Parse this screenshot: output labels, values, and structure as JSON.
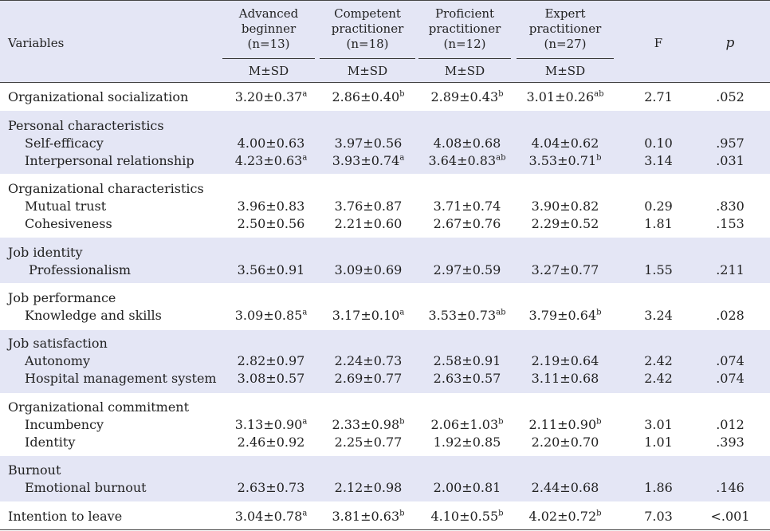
{
  "header": {
    "variables": "Variables",
    "groups": [
      "Advanced\nbeginner\n(n=13)",
      "Competent\npractitioner\n(n=18)",
      "Proficient\npractitioner\n(n=12)",
      "Expert\npractitioner\n(n=27)"
    ],
    "msd": "M±SD",
    "f": "F",
    "p": "p"
  },
  "rows": {
    "r0": {
      "label": "Organizational socialization",
      "v0": "3.20±0.37",
      "s0": "a",
      "v1": "2.86±0.40",
      "s1": "b",
      "v2": "2.89±0.43",
      "s2": "b",
      "v3": "3.01±0.26",
      "s3": "ab",
      "f": "2.71",
      "p": ".052"
    },
    "r1": {
      "label": "Personal characteristics"
    },
    "r2": {
      "label": "Self-efficacy",
      "v0": "4.00±0.63",
      "v1": "3.97±0.56",
      "v2": "4.08±0.68",
      "v3": "4.04±0.62",
      "f": "0.10",
      "p": ".957"
    },
    "r3": {
      "label": "Interpersonal relationship",
      "v0": "4.23±0.63",
      "s0": "a",
      "v1": "3.93±0.74",
      "s1": "a",
      "v2": "3.64±0.83",
      "s2": "ab",
      "v3": "3.53±0.71",
      "s3": "b",
      "f": "3.14",
      "p": ".031"
    },
    "r4": {
      "label": "Organizational characteristics"
    },
    "r5": {
      "label": "Mutual trust",
      "v0": "3.96±0.83",
      "v1": "3.76±0.87",
      "v2": "3.71±0.74",
      "v3": "3.90±0.82",
      "f": "0.29",
      "p": ".830"
    },
    "r6": {
      "label": "Cohesiveness",
      "v0": "2.50±0.56",
      "v1": "2.21±0.60",
      "v2": "2.67±0.76",
      "v3": "2.29±0.52",
      "f": "1.81",
      "p": ".153"
    },
    "r7": {
      "label": "Job identity"
    },
    "r8": {
      "label": "Professionalism",
      "v0": "3.56±0.91",
      "v1": "3.09±0.69",
      "v2": "2.97±0.59",
      "v3": "3.27±0.77",
      "f": "1.55",
      "p": ".211"
    },
    "r9": {
      "label": "Job performance"
    },
    "r10": {
      "label": "Knowledge and skills",
      "v0": "3.09±0.85",
      "s0": "a",
      "v1": "3.17±0.10",
      "s1": "a",
      "v2": "3.53±0.73",
      "s2": "ab",
      "v3": "3.79±0.64",
      "s3": "b",
      "f": "3.24",
      "p": ".028"
    },
    "r11": {
      "label": "Job satisfaction"
    },
    "r12": {
      "label": "Autonomy",
      "v0": "2.82±0.97",
      "v1": "2.24±0.73",
      "v2": "2.58±0.91",
      "v3": "2.19±0.64",
      "f": "2.42",
      "p": ".074"
    },
    "r13": {
      "label": "Hospital management system",
      "v0": "3.08±0.57",
      "v1": "2.69±0.77",
      "v2": "2.63±0.57",
      "v3": "3.11±0.68",
      "f": "2.42",
      "p": ".074"
    },
    "r14": {
      "label": "Organizational commitment"
    },
    "r15": {
      "label": "Incumbency",
      "v0": "3.13±0.90",
      "s0": "a",
      "v1": "2.33±0.98",
      "s1": "b",
      "v2": "2.06±1.03",
      "s2": "b",
      "v3": "2.11±0.90",
      "s3": "b",
      "f": "3.01",
      "p": ".012"
    },
    "r16": {
      "label": "Identity",
      "v0": "2.46±0.92",
      "v1": "2.25±0.77",
      "v2": "1.92±0.85",
      "v3": "2.20±0.70",
      "f": "1.01",
      "p": ".393"
    },
    "r17": {
      "label": "Burnout"
    },
    "r18": {
      "label": "Emotional burnout",
      "v0": "2.63±0.73",
      "v1": "2.12±0.98",
      "v2": "2.00±0.81",
      "v3": "2.44±0.68",
      "f": "1.86",
      "p": ".146"
    },
    "r19": {
      "label": "Intention to leave",
      "v0": "3.04±0.78",
      "s0": "a",
      "v1": "3.81±0.63",
      "s1": "b",
      "v2": "4.10±0.55",
      "s2": "b",
      "v3": "4.02±0.72",
      "s3": "b",
      "f": "7.03",
      "p": "<.001"
    }
  }
}
